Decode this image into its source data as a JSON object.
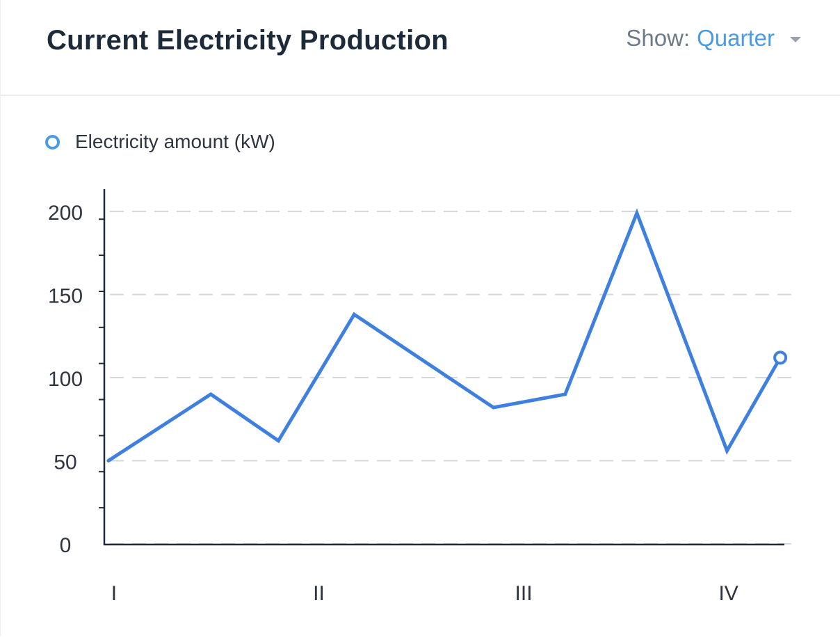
{
  "header": {
    "title": "Current Electricity Production",
    "show_label": "Show:",
    "show_value": "Quarter"
  },
  "legend": {
    "label": "Electricity amount (kW)"
  },
  "colors": {
    "line": "#3f7fe0",
    "accent": "#4a9be6",
    "axis": "#1c2a3a",
    "grid": "#d4d7db"
  },
  "chart_data": {
    "type": "line",
    "x": [
      0,
      0.5,
      0.83,
      1.2,
      1.88,
      2.23,
      2.58,
      3.02,
      3.28
    ],
    "values": [
      50,
      90,
      62,
      138,
      82,
      90,
      199,
      56,
      112
    ],
    "xlim": [
      -0.02,
      3.3
    ],
    "ylim": [
      0,
      200
    ],
    "xticks": [
      0,
      1,
      2,
      3
    ],
    "xtick_labels": [
      "I",
      "II",
      "III",
      "IV"
    ],
    "yticks": [
      0,
      50,
      100,
      150,
      200
    ],
    "ytick_labels": [
      "0",
      "50",
      "100",
      "150",
      "200"
    ],
    "minor_ytick_step": 21.7,
    "grid": true,
    "legend_position": "top-left",
    "series": [
      {
        "name": "Electricity amount (kW)"
      }
    ]
  }
}
